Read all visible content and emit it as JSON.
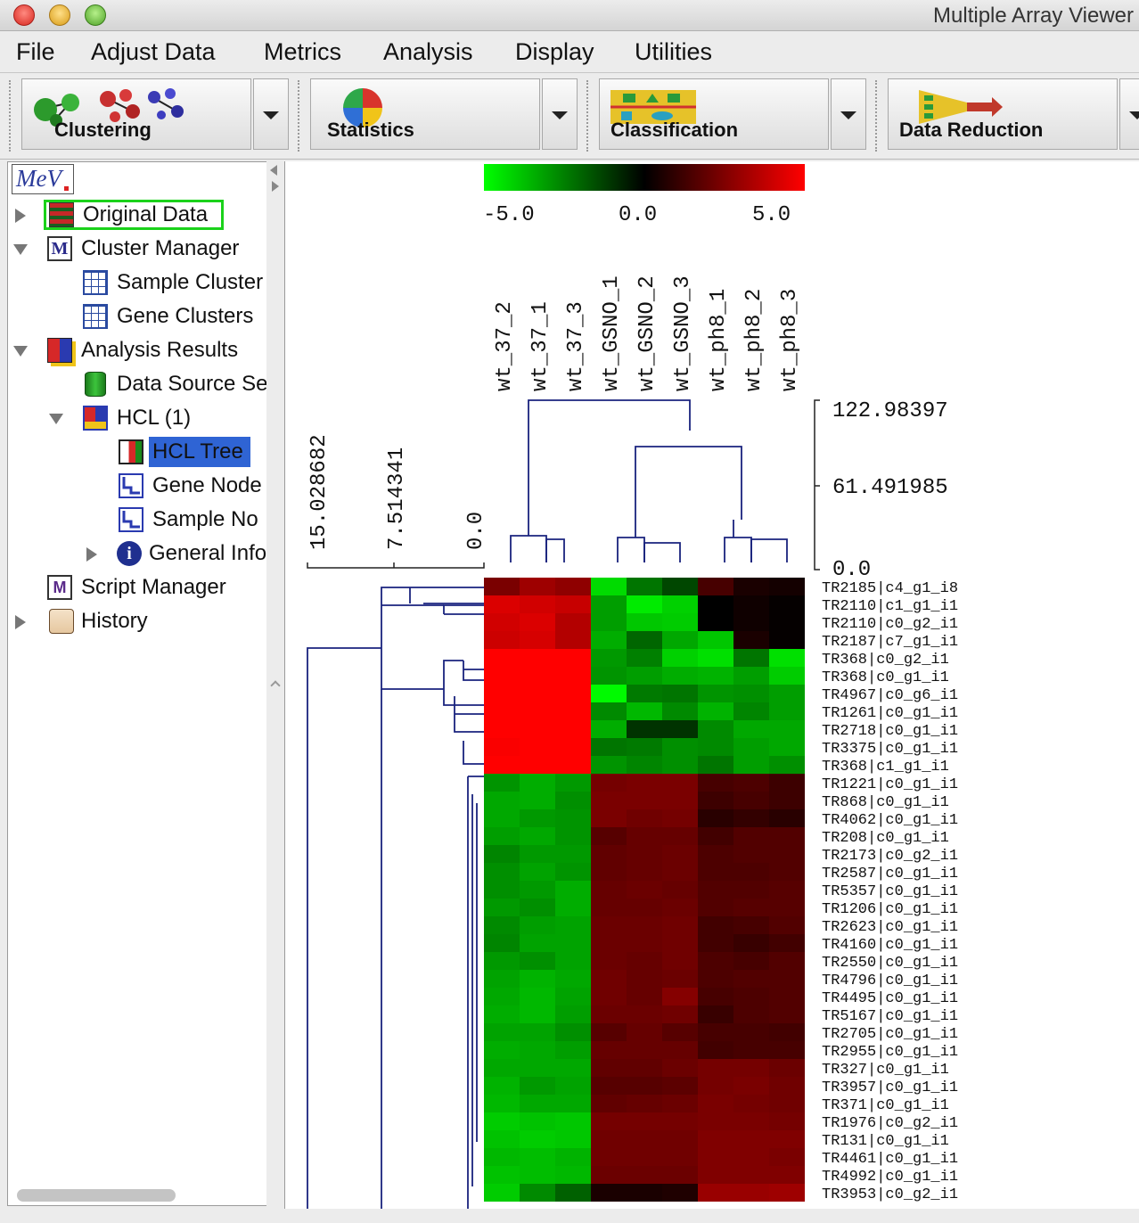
{
  "window": {
    "title": "Multiple Array Viewer"
  },
  "menu": [
    "File",
    "Adjust Data",
    "Metrics",
    "Analysis",
    "Display",
    "Utilities"
  ],
  "toolbar": {
    "clustering_label": "Clustering",
    "statistics_label": "Statistics",
    "classification_label": "Classification",
    "data_reduction_label": "Data Reduction"
  },
  "tree": {
    "logo": "MeV",
    "original_data": "Original Data",
    "cluster_manager": "Cluster Manager",
    "sample_clusters": "Sample Cluster",
    "gene_clusters": "Gene Clusters",
    "analysis_results": "Analysis Results",
    "data_source": "Data Source Se",
    "hcl": "HCL (1)",
    "hcl_tree": "HCL Tree",
    "gene_node": "Gene Node",
    "sample_node": "Sample No",
    "general_info": "General Info",
    "script_manager": "Script Manager",
    "history": "History"
  },
  "colors": {
    "low": "#00ff00",
    "mid": "#000000",
    "high": "#ff0000",
    "tree_line": "#1a237e",
    "selection": "#2f64d4"
  },
  "heatmap": {
    "scale_labels": [
      "-5.0",
      "0.0",
      "5.0"
    ],
    "samples": [
      "wt_37_2",
      "wt_37_1",
      "wt_37_3",
      "wt_GSNO_1",
      "wt_GSNO_2",
      "wt_GSNO_3",
      "wt_ph8_1",
      "wt_ph8_2",
      "wt_ph8_3"
    ],
    "sample_tree_scale": [
      "122.98397",
      "61.491985",
      "0.0"
    ],
    "gene_tree_scale": [
      "15.028682",
      "7.514341",
      "0.0"
    ],
    "genes": [
      "TR2185|c4_g1_i8",
      "TR2110|c1_g1_i1",
      "TR2110|c0_g2_i1",
      "TR2187|c7_g1_i1",
      "TR368|c0_g2_i1",
      "TR368|c0_g1_i1",
      "TR4967|c0_g6_i1",
      "TR1261|c0_g1_i1",
      "TR2718|c0_g1_i1",
      "TR3375|c0_g1_i1",
      "TR368|c1_g1_i1",
      "TR1221|c0_g1_i1",
      "TR868|c0_g1_i1",
      "TR4062|c0_g1_i1",
      "TR208|c0_g1_i1",
      "TR2173|c0_g2_i1",
      "TR2587|c0_g1_i1",
      "TR5357|c0_g1_i1",
      "TR1206|c0_g1_i1",
      "TR2623|c0_g1_i1",
      "TR4160|c0_g1_i1",
      "TR2550|c0_g1_i1",
      "TR4796|c0_g1_i1",
      "TR4495|c0_g1_i1",
      "TR5167|c0_g1_i1",
      "TR2705|c0_g1_i1",
      "TR2955|c0_g1_i1",
      "TR327|c0_g1_i1",
      "TR3957|c0_g1_i1",
      "TR371|c0_g1_i1",
      "TR1976|c0_g2_i1",
      "TR131|c0_g1_i1",
      "TR4461|c0_g1_i1",
      "TR4992|c0_g1_i1",
      "TR3953|c0_g2_i1"
    ],
    "values": [
      [
        2.4,
        3.1,
        2.8,
        -4.3,
        -2.3,
        -1.4,
        1.4,
        0.5,
        0.4
      ],
      [
        4.3,
        4.1,
        3.9,
        -3.1,
        -4.6,
        -4.1,
        0.0,
        0.3,
        0.1
      ],
      [
        4.1,
        4.3,
        3.5,
        -3.1,
        -3.9,
        -4.0,
        0.0,
        0.3,
        0.1
      ],
      [
        4.0,
        4.2,
        3.5,
        -3.4,
        -2.0,
        -3.3,
        -3.9,
        0.5,
        0.1
      ],
      [
        5,
        5,
        5,
        -3.0,
        -2.5,
        -4.1,
        -4.4,
        -2.3,
        -4.4
      ],
      [
        5,
        5,
        5,
        -2.9,
        -3.1,
        -3.4,
        -3.5,
        -3.1,
        -4.0
      ],
      [
        5,
        5,
        5,
        -4.9,
        -2.4,
        -2.3,
        -2.9,
        -2.8,
        -3.1
      ],
      [
        5,
        5,
        5,
        -2.7,
        -3.6,
        -2.7,
        -3.5,
        -2.6,
        -3.1
      ],
      [
        5,
        5,
        5,
        -3.4,
        -1.0,
        -1.0,
        -2.7,
        -3.3,
        -3.3
      ],
      [
        4.9,
        5,
        5,
        -2.3,
        -2.4,
        -2.8,
        -2.7,
        -3.1,
        -3.3
      ],
      [
        5,
        5,
        5,
        -2.9,
        -2.6,
        -2.8,
        -2.3,
        -3.1,
        -2.8
      ],
      [
        -2.9,
        -3.4,
        -3.0,
        2.3,
        2.4,
        2.4,
        1.4,
        1.5,
        1.2
      ],
      [
        -3.3,
        -3.4,
        -2.8,
        2.4,
        2.4,
        2.4,
        1.2,
        1.4,
        1.2
      ],
      [
        -3.3,
        -3.0,
        -2.9,
        2.4,
        2.2,
        2.3,
        0.8,
        1.0,
        0.8
      ],
      [
        -3.1,
        -3.3,
        -2.9,
        1.7,
        2.0,
        2.0,
        1.3,
        1.6,
        1.6
      ],
      [
        -2.6,
        -3.0,
        -3.0,
        1.9,
        2.0,
        2.1,
        1.5,
        1.6,
        1.6
      ],
      [
        -2.8,
        -3.2,
        -2.9,
        1.9,
        2.0,
        2.1,
        1.5,
        1.5,
        1.6
      ],
      [
        -2.8,
        -3.0,
        -3.4,
        2.0,
        2.1,
        2.0,
        1.6,
        1.6,
        1.7
      ],
      [
        -3.0,
        -2.8,
        -3.4,
        2.0,
        2.0,
        2.1,
        1.6,
        1.7,
        1.7
      ],
      [
        -2.7,
        -3.1,
        -3.2,
        2.1,
        2.1,
        2.2,
        1.3,
        1.4,
        1.6
      ],
      [
        -2.6,
        -3.2,
        -3.2,
        2.1,
        2.1,
        2.2,
        1.3,
        1.1,
        1.3
      ],
      [
        -3.0,
        -2.8,
        -3.2,
        2.1,
        2.0,
        2.2,
        1.5,
        1.4,
        1.6
      ],
      [
        -3.2,
        -3.5,
        -3.3,
        2.2,
        2.0,
        2.1,
        1.5,
        1.6,
        1.6
      ],
      [
        -3.3,
        -3.6,
        -3.2,
        2.2,
        2.0,
        2.6,
        1.4,
        1.5,
        1.6
      ],
      [
        -3.4,
        -3.6,
        -3.1,
        2.1,
        2.1,
        2.2,
        1.1,
        1.5,
        1.6
      ],
      [
        -3.2,
        -3.2,
        -2.8,
        1.7,
        2.0,
        1.7,
        1.4,
        1.4,
        1.3
      ],
      [
        -3.4,
        -3.3,
        -3.1,
        2.0,
        2.0,
        2.0,
        1.3,
        1.4,
        1.4
      ],
      [
        -3.3,
        -3.3,
        -3.3,
        1.9,
        1.9,
        2.1,
        2.3,
        2.3,
        2.1
      ],
      [
        -3.5,
        -3.0,
        -3.2,
        1.7,
        1.7,
        1.8,
        2.3,
        2.4,
        2.2
      ],
      [
        -3.6,
        -3.3,
        -3.3,
        1.9,
        2.0,
        2.1,
        2.4,
        2.3,
        2.2
      ],
      [
        -4.0,
        -3.8,
        -3.9,
        2.3,
        2.3,
        2.3,
        2.4,
        2.4,
        2.3
      ],
      [
        -3.8,
        -4.0,
        -3.9,
        2.2,
        2.2,
        2.2,
        2.5,
        2.5,
        2.5
      ],
      [
        -3.6,
        -3.7,
        -3.5,
        2.2,
        2.2,
        2.2,
        2.5,
        2.5,
        2.4
      ],
      [
        -3.8,
        -3.7,
        -3.6,
        2.1,
        2.1,
        2.1,
        2.5,
        2.5,
        2.5
      ],
      [
        -4.0,
        -2.7,
        -1.9,
        0.5,
        0.5,
        0.6,
        3.0,
        3.0,
        3.1
      ]
    ]
  }
}
